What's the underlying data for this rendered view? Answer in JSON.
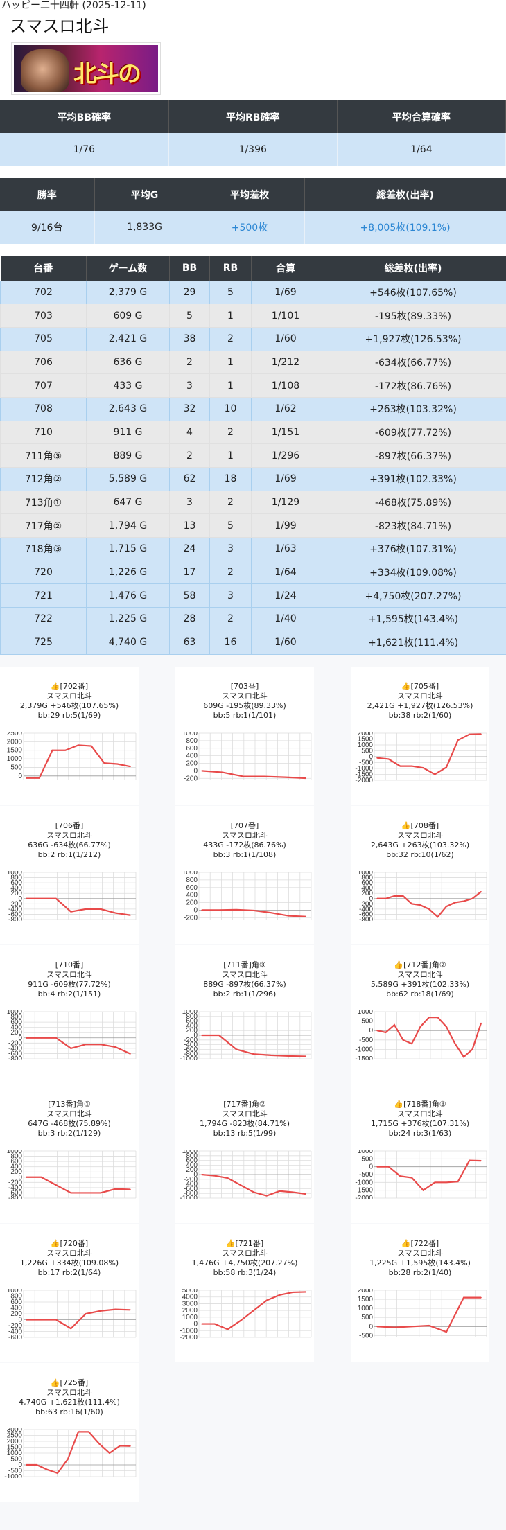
{
  "caption": "ハッピー二十四軒 (2025-12-11)",
  "title": "スマスロ北斗",
  "banner": {
    "logo": "北斗の拳"
  },
  "prob_table": {
    "headers": [
      "平均BB確率",
      "平均RB確率",
      "平均合算確率"
    ],
    "values": [
      "1/76",
      "1/396",
      "1/64"
    ]
  },
  "summary_table": {
    "headers": [
      "勝率",
      "平均G",
      "平均差枚",
      "総差枚(出率)"
    ],
    "values": [
      "9/16台",
      "1,833G",
      "+500枚",
      "+8,005枚(109.1%)"
    ]
  },
  "machine_table": {
    "headers": [
      "台番",
      "ゲーム数",
      "BB",
      "RB",
      "合算",
      "総差枚(出率)"
    ],
    "rows": [
      {
        "no": "702",
        "games": "2,379 G",
        "bb": "29",
        "rb": "5",
        "total": "1/69",
        "diff": "+546枚(107.65%)",
        "hl": true
      },
      {
        "no": "703",
        "games": "609 G",
        "bb": "5",
        "rb": "1",
        "total": "1/101",
        "diff": "-195枚(89.33%)",
        "hl": false
      },
      {
        "no": "705",
        "games": "2,421 G",
        "bb": "38",
        "rb": "2",
        "total": "1/60",
        "diff": "+1,927枚(126.53%)",
        "hl": true
      },
      {
        "no": "706",
        "games": "636 G",
        "bb": "2",
        "rb": "1",
        "total": "1/212",
        "diff": "-634枚(66.77%)",
        "hl": false
      },
      {
        "no": "707",
        "games": "433 G",
        "bb": "3",
        "rb": "1",
        "total": "1/108",
        "diff": "-172枚(86.76%)",
        "hl": false
      },
      {
        "no": "708",
        "games": "2,643 G",
        "bb": "32",
        "rb": "10",
        "total": "1/62",
        "diff": "+263枚(103.32%)",
        "hl": true
      },
      {
        "no": "710",
        "games": "911 G",
        "bb": "4",
        "rb": "2",
        "total": "1/151",
        "diff": "-609枚(77.72%)",
        "hl": false
      },
      {
        "no": "711角③",
        "games": "889 G",
        "bb": "2",
        "rb": "1",
        "total": "1/296",
        "diff": "-897枚(66.37%)",
        "hl": false
      },
      {
        "no": "712角②",
        "games": "5,589 G",
        "bb": "62",
        "rb": "18",
        "total": "1/69",
        "diff": "+391枚(102.33%)",
        "hl": true
      },
      {
        "no": "713角①",
        "games": "647 G",
        "bb": "3",
        "rb": "2",
        "total": "1/129",
        "diff": "-468枚(75.89%)",
        "hl": false
      },
      {
        "no": "717角②",
        "games": "1,794 G",
        "bb": "13",
        "rb": "5",
        "total": "1/99",
        "diff": "-823枚(84.71%)",
        "hl": false
      },
      {
        "no": "718角③",
        "games": "1,715 G",
        "bb": "24",
        "rb": "3",
        "total": "1/63",
        "diff": "+376枚(107.31%)",
        "hl": true
      },
      {
        "no": "720",
        "games": "1,226 G",
        "bb": "17",
        "rb": "2",
        "total": "1/64",
        "diff": "+334枚(109.08%)",
        "hl": true
      },
      {
        "no": "721",
        "games": "1,476 G",
        "bb": "58",
        "rb": "3",
        "total": "1/24",
        "diff": "+4,750枚(207.27%)",
        "hl": true
      },
      {
        "no": "722",
        "games": "1,225 G",
        "bb": "28",
        "rb": "2",
        "total": "1/40",
        "diff": "+1,595枚(143.4%)",
        "hl": true
      },
      {
        "no": "725",
        "games": "4,740 G",
        "bb": "63",
        "rb": "16",
        "total": "1/60",
        "diff": "+1,621枚(111.4%)",
        "hl": true
      }
    ]
  },
  "chart_data": [
    {
      "type": "line",
      "title": "[702番]",
      "win": true,
      "model": "スマスロ北斗",
      "line2": "2,379G +546枚(107.65%)",
      "line3": "bb:29 rb:5(1/69)",
      "ylim": [
        -250,
        2500
      ],
      "yticks": [
        2500,
        2000,
        1500,
        1000,
        500,
        0
      ],
      "values": [
        -120,
        -120,
        1500,
        1500,
        1800,
        1750,
        750,
        700,
        550
      ]
    },
    {
      "type": "line",
      "title": "[703番]",
      "win": false,
      "model": "スマスロ北斗",
      "line2": "609G -195枚(89.33%)",
      "line3": "bb:5 rb:1(1/101)",
      "ylim": [
        -250,
        1000
      ],
      "yticks": [
        1000,
        800,
        600,
        400,
        200,
        0,
        -200
      ],
      "values": [
        0,
        -40,
        -150,
        -150,
        -170,
        -195
      ]
    },
    {
      "type": "line",
      "title": "[705番]",
      "win": true,
      "model": "スマスロ北斗",
      "line2": "2,421G +1,927枚(126.53%)",
      "line3": "bb:38 rb:2(1/60)",
      "ylim": [
        -2000,
        2000
      ],
      "yticks": [
        2000,
        1500,
        1000,
        500,
        0,
        -500,
        -1000,
        -1500,
        -2000
      ],
      "values": [
        -100,
        -200,
        -800,
        -800,
        -950,
        -1500,
        -900,
        1400,
        1900,
        1920
      ]
    },
    {
      "type": "line",
      "title": "[706番]",
      "win": false,
      "model": "スマスロ北斗",
      "line2": "636G -634枚(66.77%)",
      "line3": "bb:2 rb:1(1/212)",
      "ylim": [
        -800,
        1000
      ],
      "yticks": [
        1000,
        800,
        600,
        400,
        200,
        0,
        -200,
        -400,
        -600,
        -800
      ],
      "values": [
        0,
        0,
        0,
        -500,
        -400,
        -400,
        -550,
        -634
      ]
    },
    {
      "type": "line",
      "title": "[707番]",
      "win": false,
      "model": "スマスロ北斗",
      "line2": "433G -172枚(86.76%)",
      "line3": "bb:3 rb:1(1/108)",
      "ylim": [
        -250,
        1000
      ],
      "yticks": [
        1000,
        800,
        600,
        400,
        200,
        0,
        -200
      ],
      "values": [
        0,
        0,
        10,
        -10,
        -70,
        -150,
        -172
      ]
    },
    {
      "type": "line",
      "title": "[708番]",
      "win": true,
      "model": "スマスロ北斗",
      "line2": "2,643G +263枚(103.32%)",
      "line3": "bb:32 rb:10(1/62)",
      "ylim": [
        -800,
        1000
      ],
      "yticks": [
        1000,
        800,
        600,
        400,
        200,
        0,
        -200,
        -400,
        -600,
        -800
      ],
      "values": [
        0,
        0,
        100,
        100,
        -200,
        -250,
        -400,
        -700,
        -300,
        -150,
        -100,
        0,
        263
      ]
    },
    {
      "type": "line",
      "title": "[710番]",
      "win": false,
      "model": "スマスロ北斗",
      "line2": "911G -609枚(77.72%)",
      "line3": "bb:4 rb:2(1/151)",
      "ylim": [
        -800,
        1000
      ],
      "yticks": [
        1000,
        800,
        600,
        400,
        200,
        0,
        -200,
        -400,
        -600,
        -800
      ],
      "values": [
        0,
        0,
        0,
        -400,
        -250,
        -250,
        -350,
        -609
      ]
    },
    {
      "type": "line",
      "title": "[711番]角③",
      "win": false,
      "model": "スマスロ北斗",
      "line2": "889G -897枚(66.37%)",
      "line3": "bb:2 rb:1(1/296)",
      "ylim": [
        -1000,
        1000
      ],
      "yticks": [
        1000,
        800,
        600,
        400,
        200,
        0,
        -200,
        -400,
        -600,
        -800,
        -1000
      ],
      "values": [
        0,
        0,
        -600,
        -800,
        -850,
        -880,
        -897
      ]
    },
    {
      "type": "line",
      "title": "[712番]角②",
      "win": true,
      "model": "スマスロ北斗",
      "line2": "5,589G +391枚(102.33%)",
      "line3": "bb:62 rb:18(1/69)",
      "ylim": [
        -1500,
        1000
      ],
      "yticks": [
        1000,
        500,
        0,
        -500,
        -1000,
        -1500
      ],
      "values": [
        0,
        -100,
        300,
        -500,
        -700,
        200,
        700,
        700,
        200,
        -700,
        -1400,
        -1000,
        391
      ]
    },
    {
      "type": "line",
      "title": "[713番]角①",
      "win": false,
      "model": "スマスロ北斗",
      "line2": "647G -468枚(75.89%)",
      "line3": "bb:3 rb:2(1/129)",
      "ylim": [
        -800,
        1000
      ],
      "yticks": [
        1000,
        800,
        600,
        400,
        200,
        0,
        -200,
        -400,
        -600,
        -800
      ],
      "values": [
        0,
        0,
        -300,
        -600,
        -600,
        -600,
        -450,
        -468
      ]
    },
    {
      "type": "line",
      "title": "[717番]角②",
      "win": false,
      "model": "スマスロ北斗",
      "line2": "1,794G -823枚(84.71%)",
      "line3": "bb:13 rb:5(1/99)",
      "ylim": [
        -1000,
        1000
      ],
      "yticks": [
        1000,
        800,
        600,
        400,
        200,
        0,
        -200,
        -400,
        -600,
        -800,
        -1000
      ],
      "values": [
        0,
        -50,
        -150,
        -450,
        -750,
        -900,
        -700,
        -750,
        -823
      ]
    },
    {
      "type": "line",
      "title": "[718番]角③",
      "win": true,
      "model": "スマスロ北斗",
      "line2": "1,715G +376枚(107.31%)",
      "line3": "bb:24 rb:3(1/63)",
      "ylim": [
        -2000,
        1000
      ],
      "yticks": [
        1000,
        500,
        0,
        -500,
        -1000,
        -1500,
        -2000
      ],
      "values": [
        0,
        0,
        -600,
        -700,
        -1500,
        -1000,
        -1000,
        -950,
        400,
        376
      ]
    },
    {
      "type": "line",
      "title": "[720番]",
      "win": true,
      "model": "スマスロ北斗",
      "line2": "1,226G +334枚(109.08%)",
      "line3": "bb:17 rb:2(1/64)",
      "ylim": [
        -600,
        1000
      ],
      "yticks": [
        1000,
        800,
        600,
        400,
        200,
        0,
        -200,
        -400,
        -600
      ],
      "values": [
        0,
        0,
        0,
        -300,
        200,
        300,
        350,
        334
      ]
    },
    {
      "type": "line",
      "title": "[721番]",
      "win": true,
      "model": "スマスロ北斗",
      "line2": "1,476G +4,750枚(207.27%)",
      "line3": "bb:58 rb:3(1/24)",
      "ylim": [
        -2000,
        5000
      ],
      "yticks": [
        5000,
        4000,
        3000,
        2000,
        1000,
        0,
        -1000,
        -2000
      ],
      "values": [
        0,
        0,
        -800,
        500,
        2000,
        3500,
        4300,
        4700,
        4750
      ]
    },
    {
      "type": "line",
      "title": "[722番]",
      "win": true,
      "model": "スマスロ北斗",
      "line2": "1,225G +1,595枚(143.4%)",
      "line3": "bb:28 rb:2(1/40)",
      "ylim": [
        -600,
        2000
      ],
      "yticks": [
        2000,
        1500,
        1000,
        500,
        0,
        -500
      ],
      "values": [
        0,
        -50,
        0,
        50,
        -300,
        1595,
        1595
      ]
    },
    {
      "type": "line",
      "title": "[725番]",
      "win": true,
      "model": "スマスロ北斗",
      "line2": "4,740G +1,621枚(111.4%)",
      "line3": "bb:63 rb:16(1/60)",
      "ylim": [
        -1000,
        3000
      ],
      "yticks": [
        3000,
        2500,
        2000,
        1500,
        1000,
        500,
        0,
        -500,
        -1000
      ],
      "values": [
        0,
        0,
        -400,
        -700,
        500,
        2800,
        2800,
        1800,
        1000,
        1621,
        1600
      ]
    }
  ]
}
